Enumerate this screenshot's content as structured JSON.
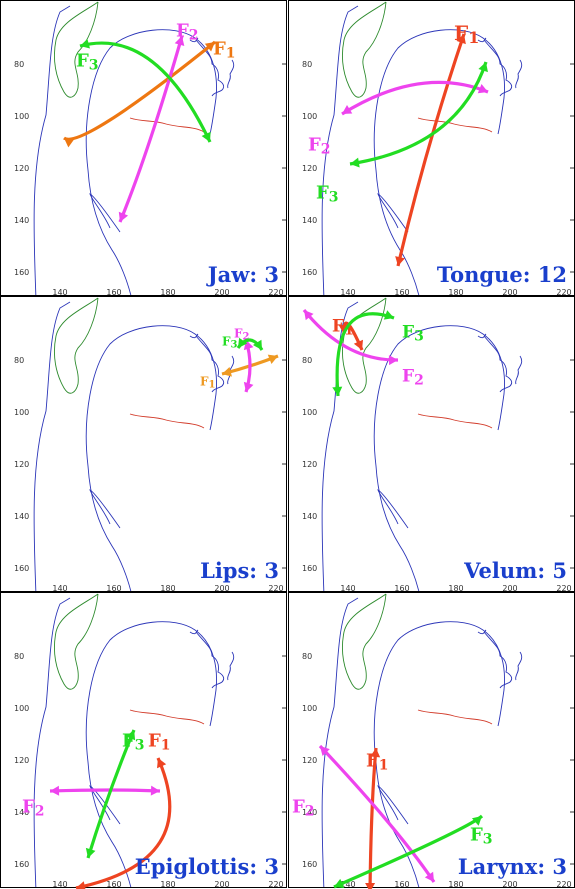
{
  "figure": {
    "y_ticks": [
      "80",
      "100",
      "120",
      "140",
      "160"
    ],
    "x_ticks": [
      "140",
      "160",
      "180",
      "200",
      "220"
    ],
    "colors": {
      "outline": "#2b35b8",
      "palate": "#2e8b2e",
      "lip": "#d23b2a",
      "axes": "#000000",
      "panel_label": "#1a3fcc"
    },
    "panels": [
      {
        "label": "Jaw: 3",
        "arrows": [
          {
            "factor": "F1",
            "color": "#ee7711"
          },
          {
            "factor": "F2",
            "color": "#ee44ee"
          },
          {
            "factor": "F3",
            "color": "#22dd22"
          }
        ]
      },
      {
        "label": "Tongue: 12",
        "arrows": [
          {
            "factor": "F1",
            "color": "#ee4422"
          },
          {
            "factor": "F2",
            "color": "#ee44ee"
          },
          {
            "factor": "F3",
            "color": "#22dd22"
          }
        ]
      },
      {
        "label": "Lips: 3",
        "arrows": [
          {
            "factor": "F1",
            "color": "#ee9922"
          },
          {
            "factor": "F2",
            "color": "#ee44ee"
          },
          {
            "factor": "F3",
            "color": "#22dd22"
          }
        ]
      },
      {
        "label": "Velum: 5",
        "arrows": [
          {
            "factor": "F1",
            "color": "#ee4422"
          },
          {
            "factor": "F2",
            "color": "#ee44ee"
          },
          {
            "factor": "F3",
            "color": "#22dd22"
          }
        ]
      },
      {
        "label": "Epiglottis: 3",
        "arrows": [
          {
            "factor": "F1",
            "color": "#ee4422"
          },
          {
            "factor": "F2",
            "color": "#ee44ee"
          },
          {
            "factor": "F3",
            "color": "#22dd22"
          }
        ]
      },
      {
        "label": "Larynx: 3",
        "arrows": [
          {
            "factor": "F1",
            "color": "#ee4422"
          },
          {
            "factor": "F2",
            "color": "#ee44ee"
          },
          {
            "factor": "F3",
            "color": "#22dd22"
          }
        ]
      }
    ]
  }
}
